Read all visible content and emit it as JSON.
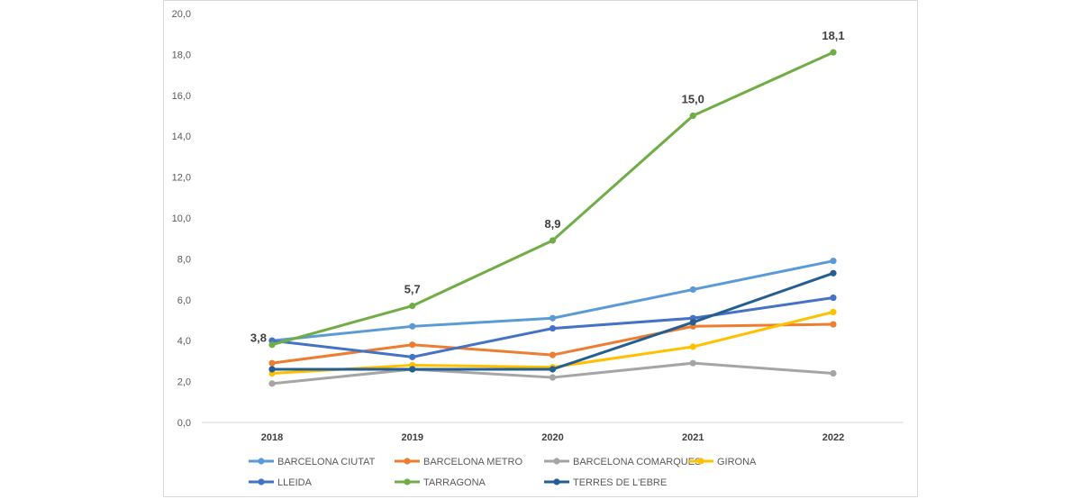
{
  "chart_data": {
    "type": "line",
    "title": "",
    "xlabel": "",
    "ylabel": "",
    "ylim": [
      0,
      20
    ],
    "y_ticks": [
      "0,0",
      "2,0",
      "4,0",
      "6,0",
      "8,0",
      "10,0",
      "12,0",
      "14,0",
      "16,0",
      "18,0",
      "20,0"
    ],
    "categories": [
      "2018",
      "2019",
      "2020",
      "2021",
      "2022"
    ],
    "legend_position": "bottom",
    "series": [
      {
        "name": "BARCELONA CIUTAT",
        "color": "#5b9bd5",
        "values": [
          4.0,
          4.7,
          5.1,
          6.5,
          7.9
        ]
      },
      {
        "name": "BARCELONA METRO",
        "color": "#ed7d31",
        "values": [
          2.9,
          3.8,
          3.3,
          4.7,
          4.8
        ]
      },
      {
        "name": "BARCELONA COMARQUES",
        "color": "#a5a5a5",
        "values": [
          1.9,
          2.6,
          2.2,
          2.9,
          2.4
        ]
      },
      {
        "name": "GIRONA",
        "color": "#ffc000",
        "values": [
          2.4,
          2.8,
          2.7,
          3.7,
          5.4
        ]
      },
      {
        "name": "LLEIDA",
        "color": "#4472c4",
        "values": [
          4.0,
          3.2,
          4.6,
          5.1,
          6.1
        ]
      },
      {
        "name": "TARRAGONA",
        "color": "#70ad47",
        "values": [
          3.8,
          5.7,
          8.9,
          15.0,
          18.1
        ]
      },
      {
        "name": "TERRES DE L'EBRE",
        "color": "#255e91",
        "values": [
          2.6,
          2.6,
          2.6,
          4.9,
          7.3
        ]
      }
    ],
    "data_labels": {
      "series": "TARRAGONA",
      "labels": [
        "3,8",
        "5,7",
        "8,9",
        "15,0",
        "18,1"
      ]
    }
  }
}
